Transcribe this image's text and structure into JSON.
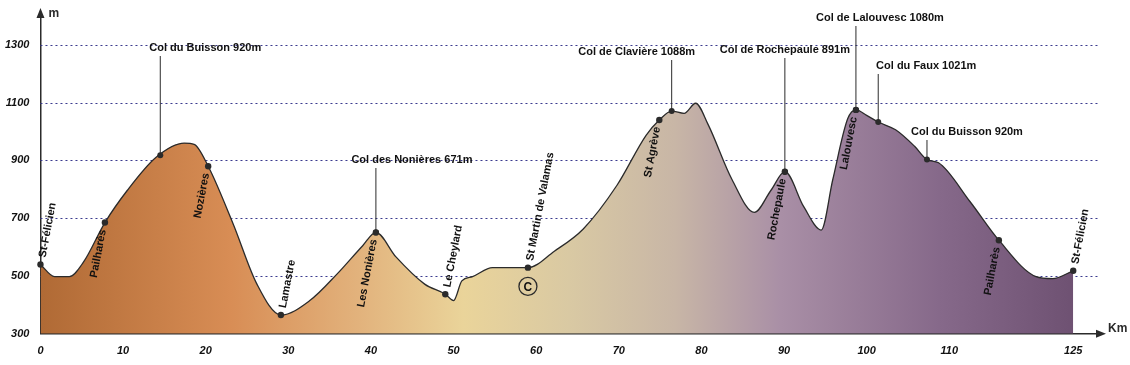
{
  "chart_data": {
    "type": "area",
    "y_label": "m",
    "x_label": "Km",
    "x": [
      0,
      1.7,
      3.5,
      5.2,
      7.8,
      10.5,
      14,
      17.4,
      18.6,
      20.3,
      23.3,
      26.2,
      29.1,
      32.6,
      36,
      39,
      40.6,
      43,
      46.5,
      49,
      50,
      51,
      52.3,
      54.7,
      59,
      62.2,
      65.7,
      69.8,
      73.3,
      74.9,
      76.4,
      77.9,
      79.3,
      80.8,
      83.7,
      86.4,
      88.4,
      90.1,
      92.4,
      94.5,
      95.9,
      97.7,
      98.7,
      100,
      101.4,
      103.5,
      105.8,
      107.3,
      108.7,
      112.5,
      116,
      120.5,
      122.5,
      125
    ],
    "values": [
      540,
      498,
      498,
      548,
      685,
      796,
      911,
      960,
      956,
      880,
      682,
      472,
      365,
      415,
      510,
      605,
      651,
      567,
      472,
      437,
      415,
      483,
      498,
      529,
      529,
      586,
      663,
      815,
      987,
      1040,
      1071,
      1063,
      1098,
      1025,
      834,
      720,
      796,
      861,
      739,
      659,
      834,
      1044,
      1075,
      1056,
      1033,
      1006,
      949,
      903,
      892,
      758,
      624,
      498,
      491,
      518
    ],
    "color": "#2b2b2b",
    "xlim": [
      0,
      128
    ],
    "xticks": [
      0,
      10,
      20,
      30,
      40,
      50,
      60,
      70,
      80,
      90,
      100,
      110,
      125
    ],
    "ylim": [
      300,
      1400
    ],
    "yticks": [
      300,
      500,
      700,
      900,
      1100,
      1300
    ],
    "grid": true,
    "passes": [
      {
        "name": "Col du Buisson 920m",
        "x": 14.5,
        "y": 918
      },
      {
        "name": "Col des Nonières 671m",
        "x": 40.6,
        "y": 651
      },
      {
        "name": "Col de Clavière 1088m",
        "x": 76.4,
        "y": 1071
      },
      {
        "name": "Col de Rochepaule 891m",
        "x": 90.1,
        "y": 861
      },
      {
        "name": "Col de Lalouvesc 1080m",
        "x": 98.7,
        "y": 1075
      },
      {
        "name": "Col du Faux 1021m",
        "x": 101.4,
        "y": 1033
      },
      {
        "name": "Col du Buisson 920m",
        "x": 107.3,
        "y": 903
      }
    ],
    "towns": [
      {
        "name": "St-Félicien",
        "x": 0,
        "y": 540
      },
      {
        "name": "Pailharès",
        "x": 7.8,
        "y": 685
      },
      {
        "name": "Nozières",
        "x": 20.3,
        "y": 880
      },
      {
        "name": "Lamastre",
        "x": 29.1,
        "y": 365
      },
      {
        "name": "Les Nonières",
        "x": 40.6,
        "y": 651
      },
      {
        "name": "Le Cheylard",
        "x": 49,
        "y": 437
      },
      {
        "name": "St Martin de Valamas",
        "x": 59,
        "y": 529
      },
      {
        "name": "St Agrève",
        "x": 74.9,
        "y": 1040
      },
      {
        "name": "Rochepaule",
        "x": 90.1,
        "y": 861
      },
      {
        "name": "Lalouvesc",
        "x": 98.7,
        "y": 1075
      },
      {
        "name": "Pailharès",
        "x": 116,
        "y": 624
      },
      {
        "name": "St-Félicien",
        "x": 125,
        "y": 518
      }
    ],
    "symbols": [
      {
        "text": "C",
        "x": 59,
        "y": 464
      }
    ]
  }
}
